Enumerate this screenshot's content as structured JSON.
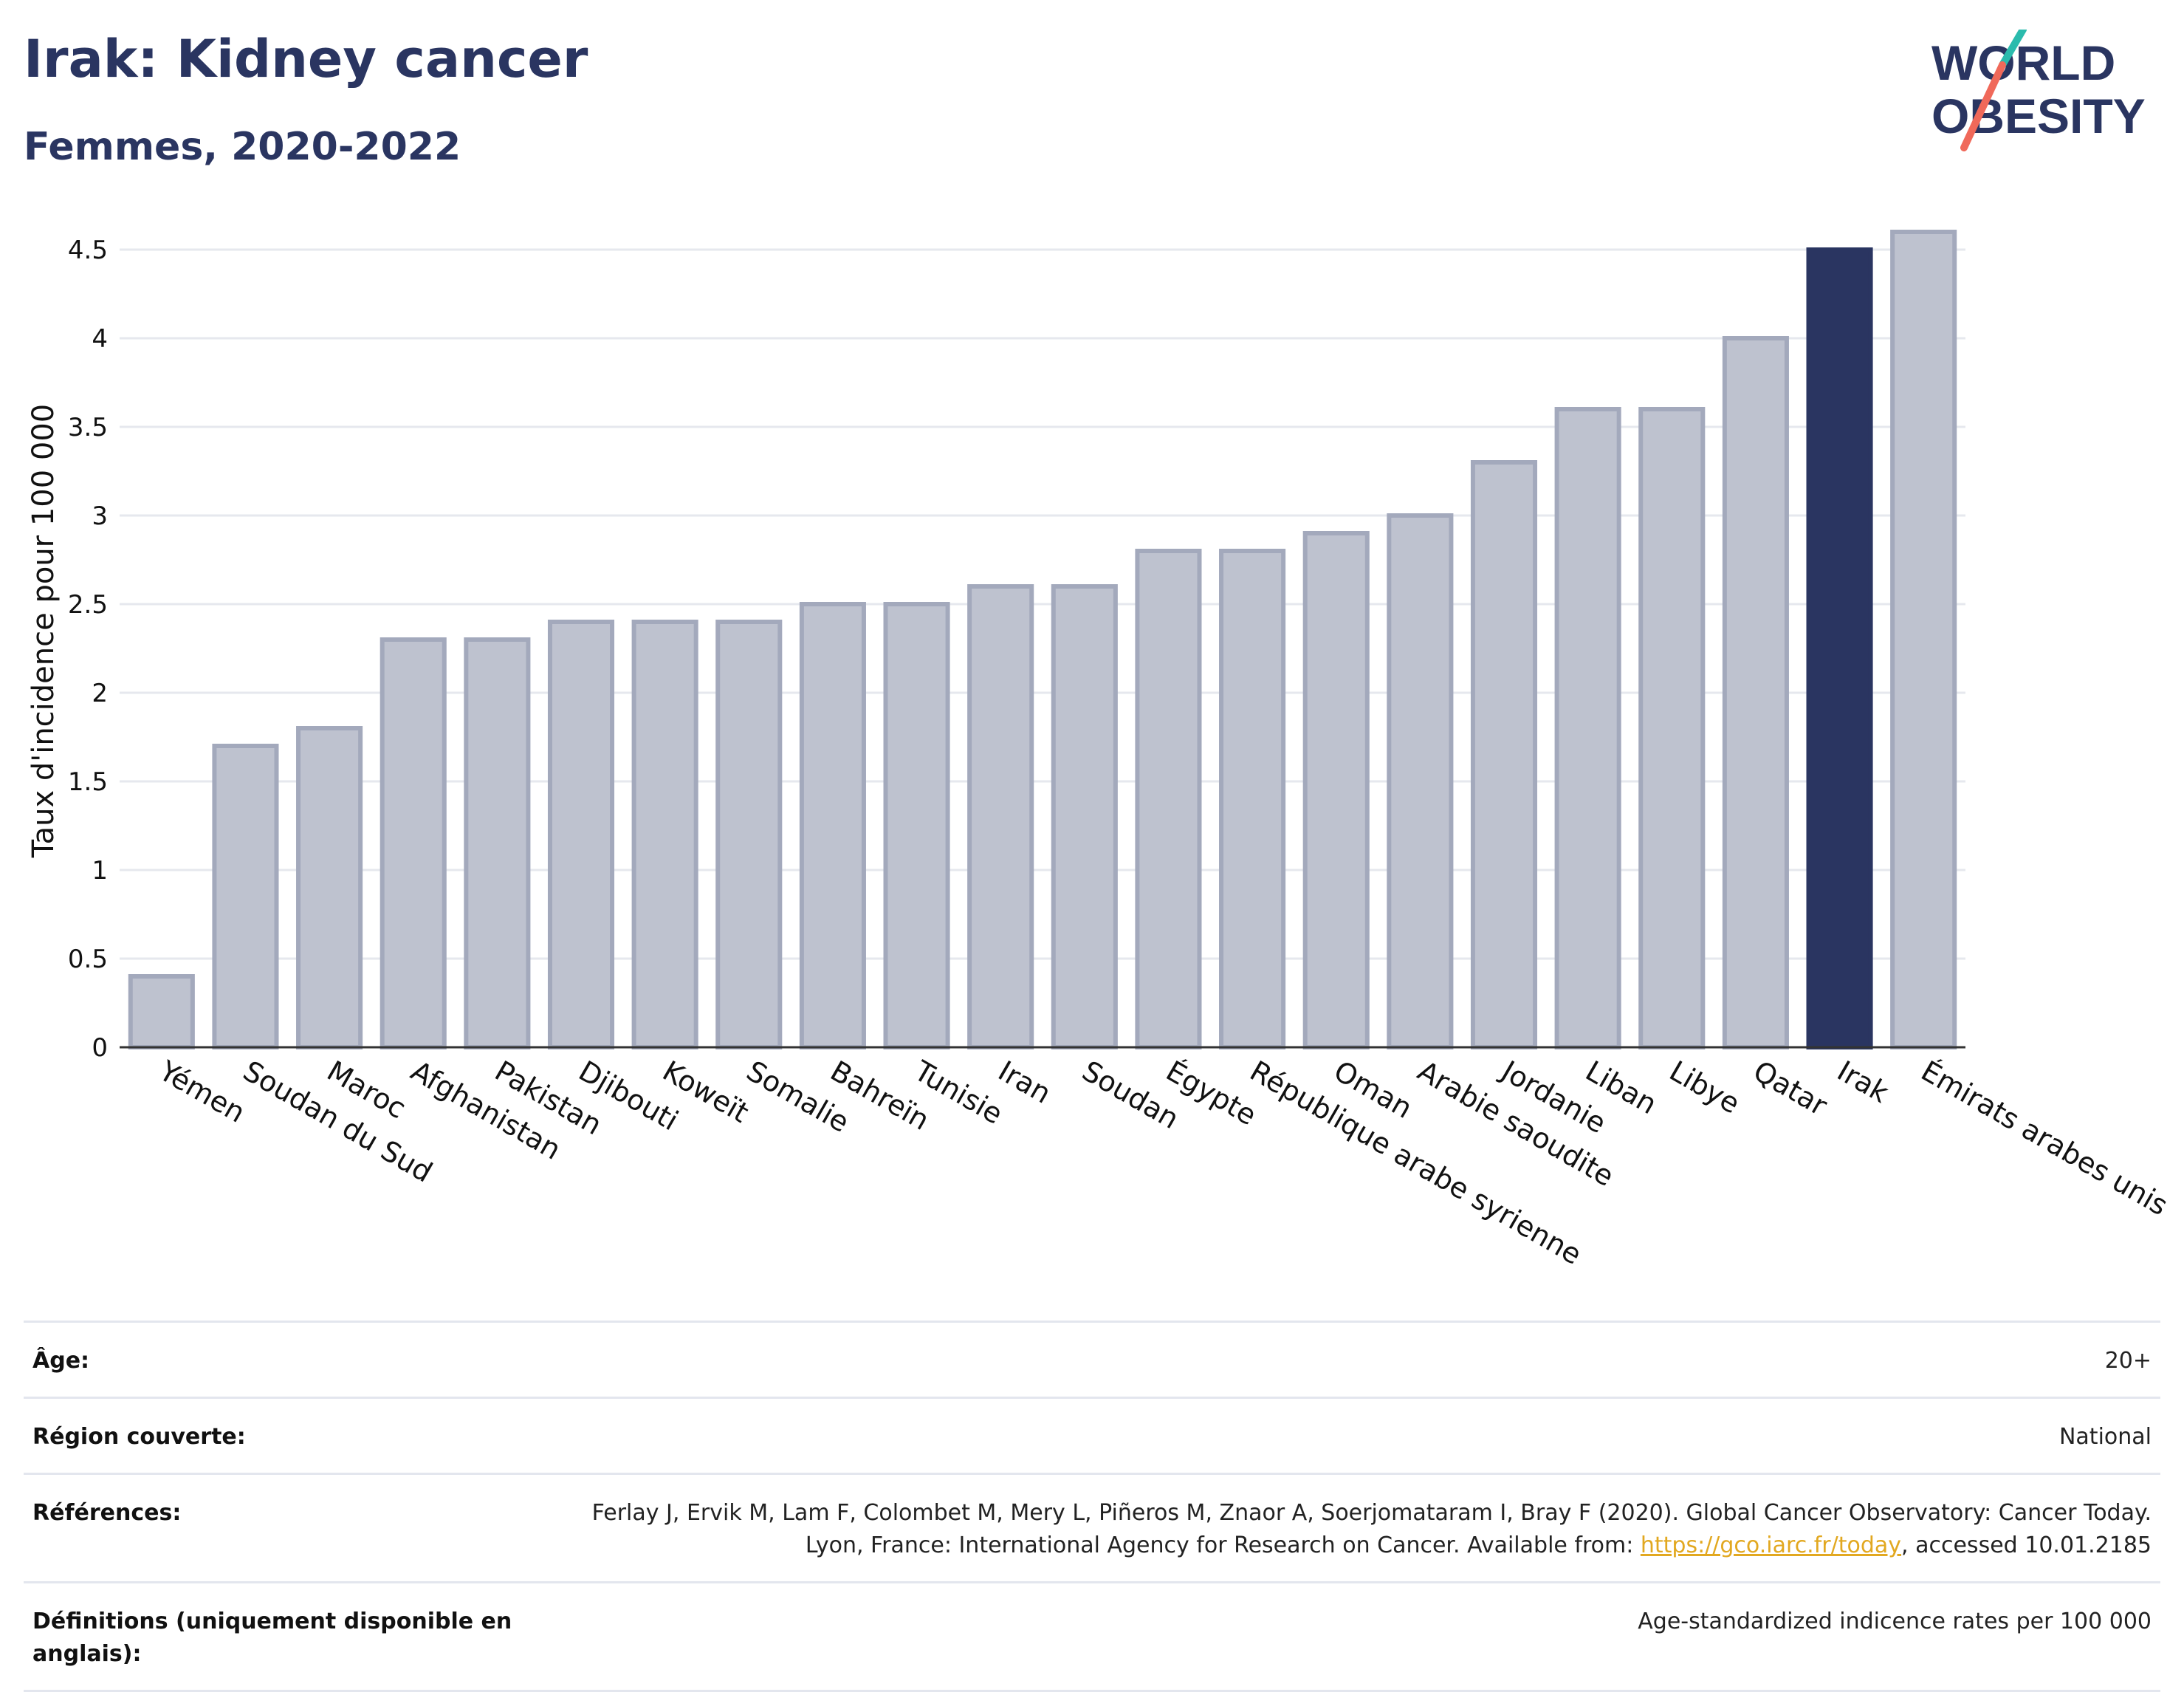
{
  "header": {
    "title": "Irak: Kidney cancer",
    "subtitle": "Femmes, 2020-2022"
  },
  "logo": {
    "line1": "WORLD",
    "line2": "OBESITY"
  },
  "colors": {
    "highlight": "#2a3561",
    "bar": "#bec2cf",
    "bar_stroke": "#a3a9bc",
    "grid": "#e6e8ee",
    "title": "#2a3561",
    "link": "#e2a820"
  },
  "chart_data": {
    "type": "bar",
    "title": "",
    "xlabel": "",
    "ylabel": "Taux d'incidence pour 100 000",
    "ylim": [
      0,
      4.7
    ],
    "yticks": [
      0,
      0.5,
      1,
      1.5,
      2,
      2.5,
      3,
      3.5,
      4,
      4.5
    ],
    "ytick_labels": [
      "0",
      "0.5",
      "1",
      "1.5",
      "2",
      "2.5",
      "3",
      "3.5",
      "4",
      "4.5"
    ],
    "grid": true,
    "highlight": "Irak",
    "categories": [
      "Yémen",
      "Soudan du Sud",
      "Maroc",
      "Afghanistan",
      "Pakistan",
      "Djibouti",
      "Koweït",
      "Somalie",
      "Bahreïn",
      "Tunisie",
      "Iran",
      "Soudan",
      "Égypte",
      "République arabe syrienne",
      "Oman",
      "Arabie saoudite",
      "Jordanie",
      "Liban",
      "Libye",
      "Qatar",
      "Irak",
      "Émirats arabes unis"
    ],
    "values": [
      0.4,
      1.7,
      1.8,
      2.3,
      2.3,
      2.4,
      2.4,
      2.4,
      2.5,
      2.5,
      2.6,
      2.6,
      2.8,
      2.8,
      2.9,
      3.0,
      3.3,
      3.6,
      3.6,
      4.0,
      4.5,
      4.6
    ]
  },
  "info": {
    "age": {
      "label": "Âge:",
      "value": "20+"
    },
    "region": {
      "label": "Région couverte:",
      "value": "National"
    },
    "references": {
      "label": "Références:",
      "text_before": "Ferlay J, Ervik M, Lam F, Colombet M, Mery L, Piñeros M, Znaor A, Soerjomataram I, Bray F (2020). Global Cancer Observatory: Cancer Today. Lyon, France: International Agency for Research on Cancer. Available from: ",
      "link": "https://gco.iarc.fr/today",
      "text_after": ", accessed 10.01.2185"
    },
    "definitions": {
      "label": "Définitions (uniquement disponible en anglais):",
      "value": "Age-standardized indicence rates per 100 000"
    }
  }
}
